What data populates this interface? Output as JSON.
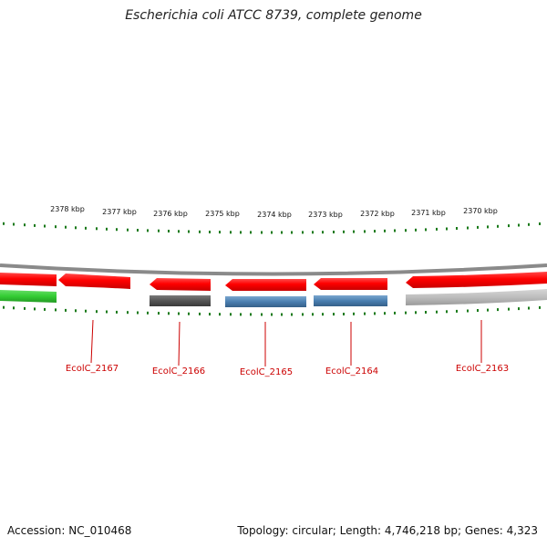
{
  "title": "Escherichia coli ATCC 8739, complete genome",
  "footer": {
    "accession": "Accession: NC_010468",
    "summary": "Topology: circular; Length: 4,746,218 bp; Genes: 4,323"
  },
  "scale": {
    "labels": [
      "2378 kbp",
      "2377 kbp",
      "2376 kbp",
      "2375 kbp",
      "2374 kbp",
      "2373 kbp",
      "2372 kbp",
      "2371 kbp",
      "2370 kbp"
    ]
  },
  "genes": [
    {
      "locus": "EcolC_2167"
    },
    {
      "locus": "EcolC_2166"
    },
    {
      "locus": "EcolC_2165"
    },
    {
      "locus": "EcolC_2164"
    },
    {
      "locus": "EcolC_2163"
    }
  ],
  "colors": {
    "gene_red": "#ff0000",
    "gene_green": "#33cc33",
    "gene_blue": "#4a7fb0",
    "gene_dark_gray": "#5a5a5a",
    "gene_light_gray": "#bbbbbb",
    "backbone": "#888888",
    "tick": "#1a7a1a",
    "label": "#cc0000"
  }
}
